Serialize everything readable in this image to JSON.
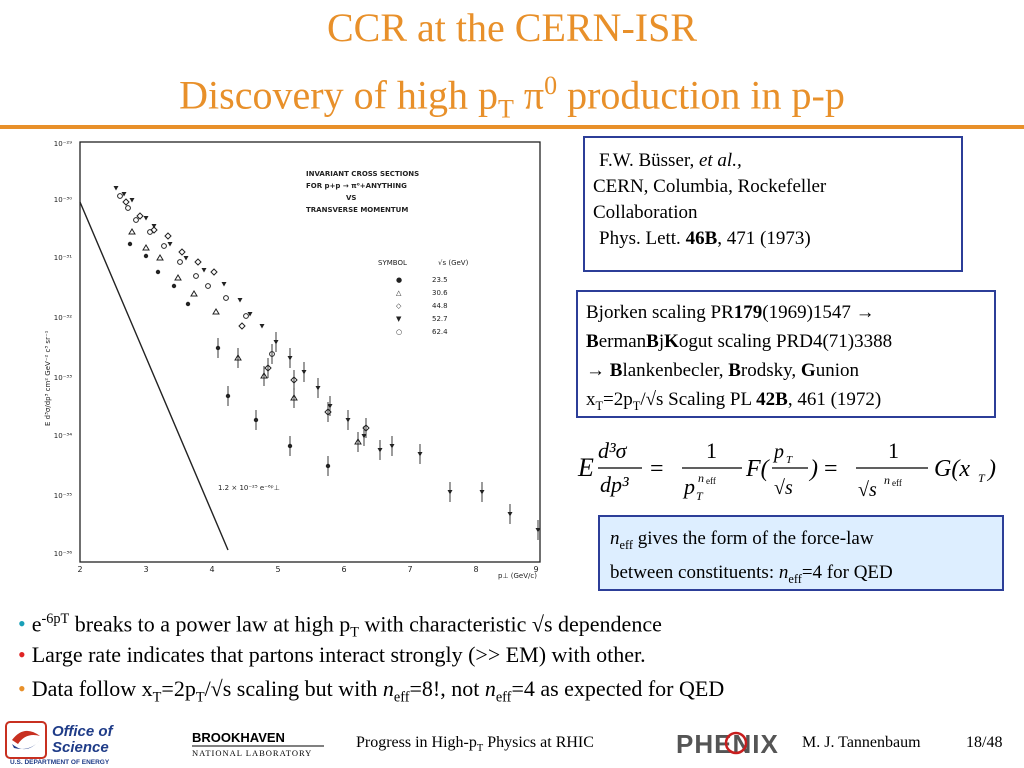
{
  "title": {
    "line1": "CCR at the CERN-ISR",
    "line2_pre": "Discovery of high p",
    "line2_sub": "T",
    "line2_pi": " π",
    "line2_sup": "0",
    "line2_post": " production in p-p"
  },
  "plot": {
    "header_lines": [
      "INVARIANT CROSS SECTIONS",
      "FOR p+p → π⁰+ANYTHING",
      "VS",
      "TRANSVERSE MOMENTUM"
    ],
    "symbol_header": "SYMBOL",
    "sqrt_s_header": "√s (GeV)",
    "legend": [
      {
        "symbol": "●",
        "sqrt_s": "23.5"
      },
      {
        "symbol": "△",
        "sqrt_s": "30.6"
      },
      {
        "symbol": "◇",
        "sqrt_s": "44.8"
      },
      {
        "symbol": "▼",
        "sqrt_s": "52.7"
      },
      {
        "symbol": "○",
        "sqrt_s": "62.4"
      }
    ],
    "ylabel": "E d³σ/dp³  cm² GeV⁻² c³ sr⁻¹",
    "xlabel": "p⊥ (GeV/c)",
    "y_ticks": [
      "10⁻²⁹",
      "10⁻³⁰",
      "10⁻³¹",
      "10⁻³²",
      "10⁻³³",
      "10⁻³⁴",
      "10⁻³⁵",
      "10⁻³⁶"
    ],
    "x_ticks": [
      "2",
      "3",
      "4",
      "5",
      "6",
      "7",
      "8",
      "9"
    ],
    "fit_label": "1.2 × 10⁻²⁵ e⁻⁶ᵖ⊥"
  },
  "ref1": {
    "line1_pre": "F.W. Büsser, ",
    "line1_em": "et al.,",
    "line2": "CERN, Columbia, Rockefeller",
    "line3": "Collaboration",
    "line4_pre": "Phys. Lett. ",
    "line4_bold": "46B",
    "line4_post": ", 471  (1973)"
  },
  "ref2": {
    "l1_pre": "Bjorken scaling PR",
    "l1_bold": "179",
    "l1_post": "(1969)1547 →",
    "l2_b1": "B",
    "l2_t1": "erman",
    "l2_b2": "B",
    "l2_t2": "j",
    "l2_b3": "K",
    "l2_t3": "ogut scaling PRD4(71)3388",
    "l3_arrow": "→ ",
    "l3_b1": "B",
    "l3_t1": "lankenbecler, ",
    "l3_b2": "B",
    "l3_t2": "rodsky, ",
    "l3_b3": "G",
    "l3_t3": "union",
    "l4_pre": "x",
    "l4_sub1": "T",
    "l4_mid": "=2p",
    "l4_sub2": "T",
    "l4_post": "/√s Scaling PL ",
    "l4_bold": "42B",
    "l4_end": ", 461 (1972)"
  },
  "formula": {
    "lhs_E": "E",
    "num": "d³σ",
    "den": "dp³",
    "eq": "=",
    "one": "1",
    "pT": "p",
    "T": "T",
    "neff": "n",
    "eff": "eff",
    "F": "F(",
    "frac_num": "p",
    "frac_den": "√s",
    "close": ")",
    "sqrt_s": "√s",
    "G": "G(x",
    "G_close": ")"
  },
  "neff_box": {
    "n": "n",
    "eff": "eff",
    "l1_post": " gives the form of the force-law",
    "l2_pre": "between constituents: ",
    "n2": "n",
    "eff2": "eff",
    "l2_post": "=4 for QED"
  },
  "bullets": {
    "b1_e": "e",
    "b1_sup": "-6pT",
    "b1_mid": " breaks to a power law at high p",
    "b1_sub": "T",
    "b1_post": " with characteristic √s dependence",
    "b2": "Large rate indicates that partons interact strongly (>> EM) with other.",
    "b3_pre": "Data follow x",
    "b3_sub1": "T",
    "b3_mid": "=2p",
    "b3_sub2": "T",
    "b3_post": "/√s scaling but with ",
    "b3_n": "n",
    "b3_eff": "eff",
    "b3_after": "=8!, not ",
    "b3_n2": "n",
    "b3_eff2": "eff",
    "b3_end": "=4 as expected for QED",
    "bullet_char": "•"
  },
  "footer": {
    "doe_line1": "Office of",
    "doe_line2": "Science",
    "doe_line3": "U.S. DEPARTMENT OF ENERGY",
    "bnl_line1": "BROOKHAVEN",
    "bnl_line2": "NATIONAL LABORATORY",
    "talk_pre": "Progress in High-p",
    "talk_sub": "T",
    "talk_post": " Physics at RHIC",
    "phenix": "PHENIX",
    "author": "M. J. Tannenbaum",
    "page": "18/48"
  },
  "colors": {
    "accent": "#e8902a",
    "box_border": "#2c3e98",
    "box_fill": "#ddeeff",
    "bullet_teal": "#19a0b8",
    "bullet_red": "#e02424",
    "doe_blue": "#1f3c88",
    "phenix_red": "#c81e1e"
  }
}
